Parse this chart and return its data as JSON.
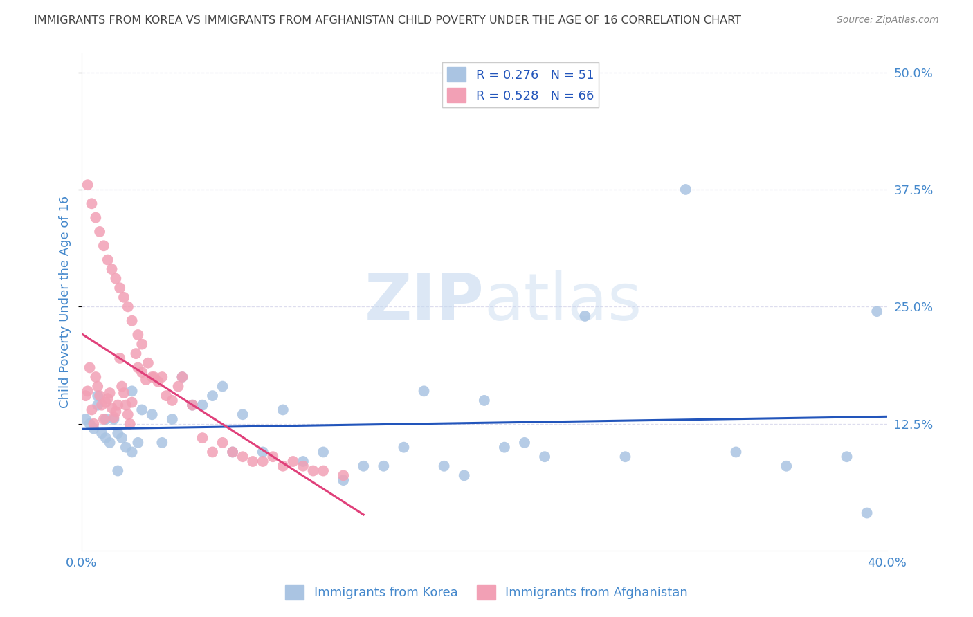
{
  "title": "IMMIGRANTS FROM KOREA VS IMMIGRANTS FROM AFGHANISTAN CHILD POVERTY UNDER THE AGE OF 16 CORRELATION CHART",
  "source": "Source: ZipAtlas.com",
  "ylabel": "Child Poverty Under the Age of 16",
  "xlim": [
    0.0,
    0.4
  ],
  "ylim": [
    -0.01,
    0.52
  ],
  "xticks": [
    0.0,
    0.1,
    0.2,
    0.3,
    0.4
  ],
  "xtick_labels": [
    "0.0%",
    "",
    "",
    "",
    "40.0%"
  ],
  "ytick_labels_right": [
    "12.5%",
    "25.0%",
    "37.5%",
    "50.0%"
  ],
  "yticks_right": [
    0.125,
    0.25,
    0.375,
    0.5
  ],
  "watermark_zip": "ZIP",
  "watermark_atlas": "atlas",
  "legend_label_korea": "R = 0.276   N = 51",
  "legend_label_afghanistan": "R = 0.528   N = 66",
  "legend_bottom_korea": "Immigrants from Korea",
  "legend_bottom_afghanistan": "Immigrants from Afghanistan",
  "korea_color": "#aac4e2",
  "afghanistan_color": "#f2a0b5",
  "korea_line_color": "#2255bb",
  "afghanistan_line_color": "#e0407a",
  "title_color": "#444444",
  "source_color": "#888888",
  "axis_label_color": "#4488cc",
  "grid_color": "#ddddee",
  "korea_scatter_x": [
    0.002,
    0.004,
    0.006,
    0.008,
    0.01,
    0.012,
    0.014,
    0.016,
    0.018,
    0.02,
    0.022,
    0.025,
    0.028,
    0.03,
    0.035,
    0.04,
    0.045,
    0.05,
    0.055,
    0.06,
    0.065,
    0.07,
    0.075,
    0.08,
    0.09,
    0.1,
    0.11,
    0.12,
    0.13,
    0.14,
    0.15,
    0.16,
    0.17,
    0.18,
    0.19,
    0.2,
    0.21,
    0.22,
    0.23,
    0.25,
    0.27,
    0.3,
    0.325,
    0.35,
    0.38,
    0.008,
    0.012,
    0.018,
    0.025,
    0.39,
    0.395
  ],
  "korea_scatter_y": [
    0.13,
    0.125,
    0.12,
    0.145,
    0.115,
    0.11,
    0.105,
    0.13,
    0.115,
    0.11,
    0.1,
    0.095,
    0.105,
    0.14,
    0.135,
    0.105,
    0.13,
    0.175,
    0.145,
    0.145,
    0.155,
    0.165,
    0.095,
    0.135,
    0.095,
    0.14,
    0.085,
    0.095,
    0.065,
    0.08,
    0.08,
    0.1,
    0.16,
    0.08,
    0.07,
    0.15,
    0.1,
    0.105,
    0.09,
    0.24,
    0.09,
    0.375,
    0.095,
    0.08,
    0.09,
    0.155,
    0.13,
    0.075,
    0.16,
    0.03,
    0.245
  ],
  "afghanistan_scatter_x": [
    0.002,
    0.003,
    0.004,
    0.005,
    0.006,
    0.007,
    0.008,
    0.009,
    0.01,
    0.011,
    0.012,
    0.013,
    0.014,
    0.015,
    0.016,
    0.017,
    0.018,
    0.019,
    0.02,
    0.021,
    0.022,
    0.023,
    0.024,
    0.025,
    0.027,
    0.028,
    0.03,
    0.032,
    0.035,
    0.038,
    0.04,
    0.042,
    0.045,
    0.048,
    0.05,
    0.055,
    0.06,
    0.065,
    0.07,
    0.075,
    0.08,
    0.085,
    0.09,
    0.095,
    0.1,
    0.105,
    0.11,
    0.115,
    0.12,
    0.13,
    0.003,
    0.005,
    0.007,
    0.009,
    0.011,
    0.013,
    0.015,
    0.017,
    0.019,
    0.021,
    0.023,
    0.025,
    0.028,
    0.03,
    0.033,
    0.036
  ],
  "afghanistan_scatter_y": [
    0.155,
    0.16,
    0.185,
    0.14,
    0.125,
    0.175,
    0.165,
    0.155,
    0.145,
    0.13,
    0.148,
    0.152,
    0.158,
    0.142,
    0.132,
    0.138,
    0.145,
    0.195,
    0.165,
    0.158,
    0.145,
    0.135,
    0.125,
    0.148,
    0.2,
    0.185,
    0.18,
    0.172,
    0.175,
    0.17,
    0.175,
    0.155,
    0.15,
    0.165,
    0.175,
    0.145,
    0.11,
    0.095,
    0.105,
    0.095,
    0.09,
    0.085,
    0.085,
    0.09,
    0.08,
    0.085,
    0.08,
    0.075,
    0.075,
    0.07,
    0.38,
    0.36,
    0.345,
    0.33,
    0.315,
    0.3,
    0.29,
    0.28,
    0.27,
    0.26,
    0.25,
    0.235,
    0.22,
    0.21,
    0.19,
    0.175
  ]
}
